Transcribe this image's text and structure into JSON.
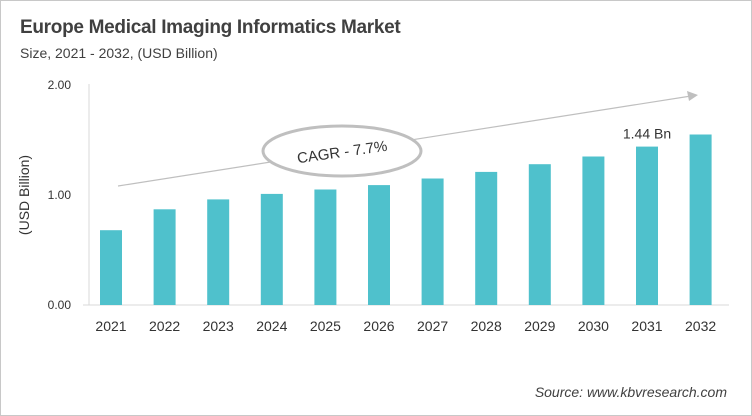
{
  "chart_data": {
    "type": "bar",
    "title": "Europe Medical Imaging Informatics Market",
    "subtitle": "Size, 2021 - 2032, (USD Billion)",
    "xlabel": "",
    "ylabel": "(USD Billion)",
    "categories": [
      "2021",
      "2022",
      "2023",
      "2024",
      "2025",
      "2026",
      "2027",
      "2028",
      "2029",
      "2030",
      "2031",
      "2032"
    ],
    "values": [
      0.68,
      0.87,
      0.96,
      1.01,
      1.05,
      1.09,
      1.15,
      1.21,
      1.28,
      1.35,
      1.44,
      1.55
    ],
    "ylim": [
      0,
      2
    ],
    "yticks": [
      "0.00",
      "1.00",
      "2.00"
    ],
    "grid": false,
    "bar_color": "#4fc1cc",
    "annotations": {
      "data_label": {
        "category": "2031",
        "text": "1.44 Bn"
      },
      "cagr": "CAGR - 7.7%"
    },
    "source": "Source: www.kbvresearch.com"
  }
}
